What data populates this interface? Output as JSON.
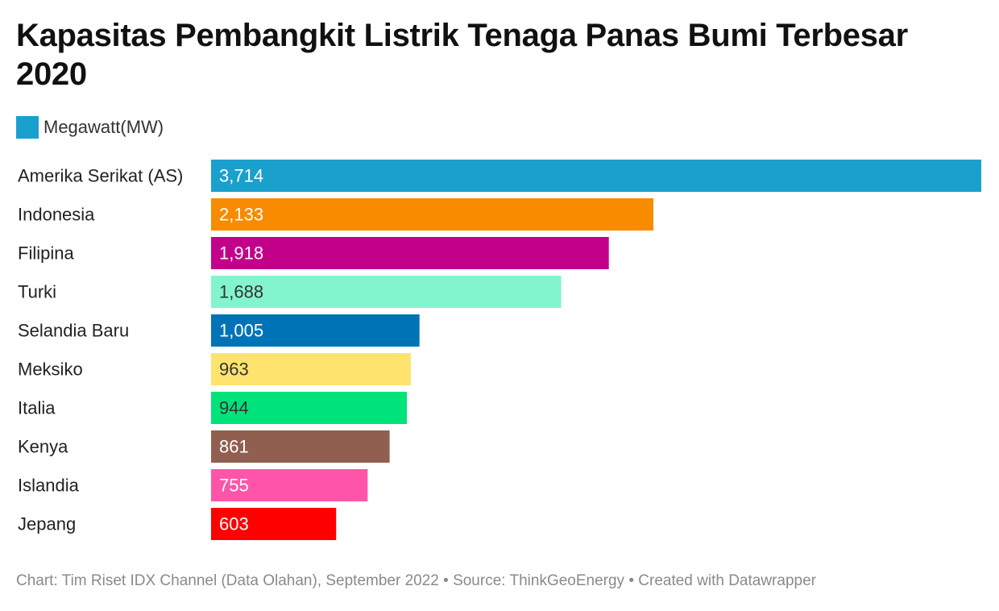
{
  "title": "Kapasitas Pembangkit Listrik Tenaga Panas Bumi Terbesar 2020",
  "legend": {
    "label": "Megawatt(MW)",
    "color": "#1aa0cd"
  },
  "footer": "Chart: Tim Riset IDX Channel (Data Olahan), September 2022 • Source: ThinkGeoEnergy • Created with Datawrapper",
  "chart_data": {
    "type": "bar",
    "orientation": "horizontal",
    "title": "Kapasitas Pembangkit Listrik Tenaga Panas Bumi Terbesar 2020",
    "series": [
      {
        "name": "Megawatt(MW)",
        "values": [
          3714,
          2133,
          1918,
          1688,
          1005,
          963,
          944,
          861,
          755,
          603
        ]
      }
    ],
    "categories": [
      "Amerika Serikat (AS)",
      "Indonesia",
      "Filipina",
      "Turki",
      "Selandia Baru",
      "Meksiko",
      "Italia",
      "Kenya",
      "Islandia",
      "Jepang"
    ],
    "value_labels": [
      "3,714",
      "2,133",
      "1,918",
      "1,688",
      "1,005",
      "963",
      "944",
      "861",
      "755",
      "603"
    ],
    "bar_colors": [
      "#1aa0cd",
      "#f88b00",
      "#c3008a",
      "#82f5cf",
      "#0073b6",
      "#fee36e",
      "#00e27a",
      "#915f50",
      "#ff55a9",
      "#ff0000"
    ],
    "value_label_colors": [
      "#ffffff",
      "#ffffff",
      "#ffffff",
      "#333333",
      "#ffffff",
      "#333333",
      "#333333",
      "#ffffff",
      "#ffffff",
      "#ffffff"
    ],
    "xlim": [
      0,
      3714
    ],
    "grid": false,
    "legend_position": "top-left"
  }
}
